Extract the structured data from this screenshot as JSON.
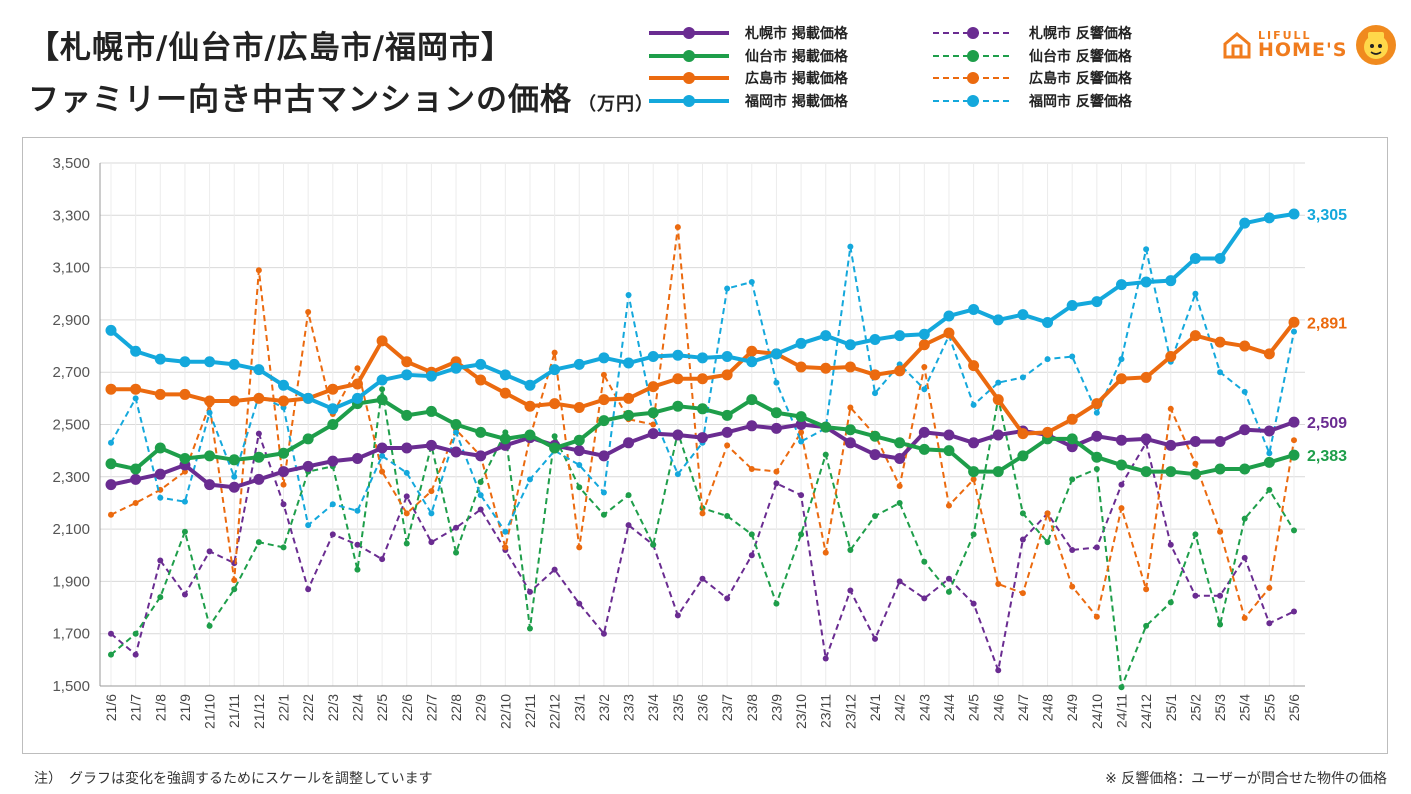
{
  "header": {
    "title_line1": "【札幌市/仙台市/広島市/福岡市】",
    "title_line2": "ファミリー向き中古マンションの価格",
    "unit": "（万円）"
  },
  "logo": {
    "line1": "LIFULL",
    "line2": "HOME'S"
  },
  "footer": {
    "note_left": "注）　グラフは変化を強調するためにスケールを調整しています",
    "note_right": "※ 反響価格：ユーザーが問合せた物件の価格"
  },
  "chart_data": {
    "type": "line",
    "x": [
      "21/6",
      "21/7",
      "21/8",
      "21/9",
      "21/10",
      "21/11",
      "21/12",
      "22/1",
      "22/2",
      "22/3",
      "22/4",
      "22/5",
      "22/6",
      "22/7",
      "22/8",
      "22/9",
      "22/10",
      "22/11",
      "22/12",
      "23/1",
      "23/2",
      "23/3",
      "23/4",
      "23/5",
      "23/6",
      "23/7",
      "23/8",
      "23/9",
      "23/10",
      "23/11",
      "23/12",
      "24/1",
      "24/2",
      "24/3",
      "24/4",
      "24/5",
      "24/6",
      "24/7",
      "24/8",
      "24/9",
      "24/10",
      "24/11",
      "24/12",
      "25/1",
      "25/2",
      "25/3",
      "25/4",
      "25/5",
      "25/6"
    ],
    "ylim": [
      1500,
      3500
    ],
    "yticks": [
      "1,500",
      "1,700",
      "1,900",
      "2,100",
      "2,300",
      "2,500",
      "2,700",
      "2,900",
      "3,100",
      "3,300",
      "3,500"
    ],
    "grid": true,
    "legend_position": "top",
    "series": [
      {
        "name": "札幌市 掲載価格",
        "style": "solid",
        "color": "#6a2c91",
        "end_label": "2,509",
        "values": [
          2270,
          2290,
          2310,
          2345,
          2270,
          2260,
          2290,
          2320,
          2340,
          2360,
          2370,
          2410,
          2410,
          2420,
          2395,
          2380,
          2420,
          2450,
          2420,
          2400,
          2380,
          2430,
          2465,
          2460,
          2450,
          2470,
          2495,
          2485,
          2500,
          2490,
          2430,
          2385,
          2370,
          2470,
          2460,
          2430,
          2460,
          2475,
          2460,
          2415,
          2455,
          2440,
          2445,
          2420,
          2435,
          2435,
          2480,
          2475,
          2509
        ]
      },
      {
        "name": "仙台市 掲載価格",
        "style": "solid",
        "color": "#1e9e4a",
        "end_label": "2,383",
        "values": [
          2350,
          2330,
          2410,
          2370,
          2380,
          2365,
          2375,
          2390,
          2445,
          2500,
          2580,
          2595,
          2535,
          2550,
          2500,
          2470,
          2445,
          2460,
          2410,
          2440,
          2515,
          2535,
          2545,
          2570,
          2560,
          2535,
          2595,
          2545,
          2530,
          2490,
          2480,
          2455,
          2430,
          2405,
          2400,
          2320,
          2320,
          2380,
          2445,
          2445,
          2375,
          2345,
          2320,
          2320,
          2310,
          2330,
          2330,
          2355,
          2383
        ]
      },
      {
        "name": "広島市 掲載価格",
        "style": "solid",
        "color": "#eb6a0f",
        "end_label": "2,891",
        "values": [
          2635,
          2635,
          2615,
          2615,
          2590,
          2590,
          2600,
          2590,
          2600,
          2635,
          2655,
          2820,
          2740,
          2700,
          2740,
          2670,
          2620,
          2570,
          2580,
          2565,
          2595,
          2600,
          2645,
          2675,
          2675,
          2690,
          2780,
          2770,
          2720,
          2715,
          2720,
          2690,
          2705,
          2805,
          2850,
          2725,
          2595,
          2465,
          2470,
          2520,
          2580,
          2675,
          2680,
          2760,
          2840,
          2815,
          2800,
          2770,
          2891
        ]
      },
      {
        "name": "福岡市 掲載価格",
        "style": "solid",
        "color": "#14a8dc",
        "end_label": "3,305",
        "values": [
          2860,
          2780,
          2750,
          2740,
          2740,
          2730,
          2710,
          2650,
          2600,
          2560,
          2600,
          2670,
          2690,
          2685,
          2715,
          2730,
          2690,
          2650,
          2710,
          2730,
          2755,
          2735,
          2760,
          2765,
          2755,
          2760,
          2740,
          2770,
          2810,
          2840,
          2805,
          2825,
          2840,
          2845,
          2915,
          2940,
          2900,
          2920,
          2890,
          2955,
          2970,
          3035,
          3045,
          3050,
          3135,
          3135,
          3270,
          3290,
          3305
        ]
      },
      {
        "name": "札幌市 反響価格",
        "style": "dashed",
        "color": "#6a2c91",
        "values": [
          1700,
          1620,
          1980,
          1850,
          2015,
          1970,
          2465,
          2195,
          1870,
          2080,
          2040,
          1985,
          2225,
          2050,
          2105,
          2175,
          2020,
          1860,
          1945,
          1815,
          1700,
          2115,
          2040,
          1770,
          1910,
          1835,
          2000,
          2275,
          2230,
          1605,
          1865,
          1680,
          1900,
          1835,
          1910,
          1815,
          1560,
          2060,
          2160,
          2020,
          2030,
          2270,
          2430,
          2040,
          1845,
          1845,
          1990,
          1740,
          1785
        ]
      },
      {
        "name": "仙台市 反響価格",
        "style": "dashed",
        "color": "#1e9e4a",
        "values": [
          1620,
          1700,
          1840,
          2090,
          1730,
          1870,
          2050,
          2030,
          2320,
          2340,
          1945,
          2635,
          2045,
          2420,
          2010,
          2280,
          2470,
          1720,
          2455,
          2260,
          2155,
          2230,
          2040,
          2470,
          2180,
          2150,
          2080,
          1815,
          2080,
          2385,
          2020,
          2150,
          2200,
          1975,
          1860,
          2080,
          2600,
          2160,
          2050,
          2290,
          2330,
          1495,
          1730,
          1820,
          2080,
          1735,
          2140,
          2250,
          2095
        ]
      },
      {
        "name": "広島市 反響価格",
        "style": "dashed",
        "color": "#eb6a0f",
        "values": [
          2155,
          2200,
          2250,
          2320,
          2575,
          1905,
          3090,
          2270,
          2930,
          2540,
          2715,
          2320,
          2160,
          2245,
          2480,
          2380,
          2030,
          2450,
          2775,
          2030,
          2690,
          2520,
          2500,
          3255,
          2160,
          2420,
          2330,
          2320,
          2470,
          2010,
          2565,
          2460,
          2265,
          2720,
          2190,
          2290,
          1890,
          1855,
          2160,
          1880,
          1765,
          2180,
          1870,
          2560,
          2350,
          2090,
          1760,
          1875,
          2440
        ]
      },
      {
        "name": "福岡市 反響価格",
        "style": "dashed",
        "color": "#14a8dc",
        "values": [
          2430,
          2600,
          2220,
          2205,
          2545,
          2300,
          2610,
          2565,
          2115,
          2195,
          2170,
          2380,
          2315,
          2160,
          2470,
          2230,
          2090,
          2290,
          2400,
          2345,
          2240,
          2995,
          2535,
          2310,
          2430,
          3020,
          3045,
          2660,
          2435,
          2485,
          3180,
          2620,
          2730,
          2635,
          2840,
          2575,
          2660,
          2680,
          2750,
          2760,
          2545,
          2750,
          3170,
          2740,
          3000,
          2700,
          2625,
          2390,
          2855
        ]
      }
    ]
  }
}
